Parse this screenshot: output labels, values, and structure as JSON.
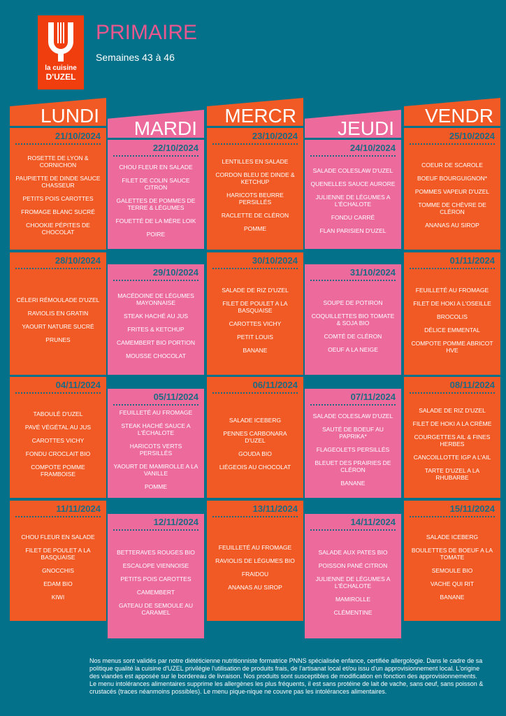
{
  "logo": {
    "line1": "la cuisine",
    "line2": "D'UZEL"
  },
  "title": "PRIMAIRE",
  "subtitle": "Semaines 43 à 46",
  "colors": {
    "background": "#03718a",
    "orange": "#f15a24",
    "pink": "#ec6a9c",
    "title": "#e8578e"
  },
  "days": [
    {
      "name": "LUNDI",
      "color": "orange",
      "weeks": [
        {
          "date": "21/10/2024",
          "items": [
            "ROSETTE DE LYON & CORNICHON",
            "PAUPIETTE DE DINDE SAUCE CHASSEUR",
            "PETITS POIS CAROTTES",
            "FROMAGE BLANC SUCRÉ",
            "CHOOKIE PÉPITES DE CHOCOLAT"
          ]
        },
        {
          "date": "28/10/2024",
          "items": [
            "CÉLERI RÉMOULADE D'UZEL",
            "RAVIOLIS EN GRATIN",
            "YAOURT NATURE SUCRÉ",
            "PRUNES"
          ]
        },
        {
          "date": "04/11/2024",
          "items": [
            "TABOULÉ D'UZEL",
            "PAVÉ VÉGÉTAL AU JUS",
            "CAROTTES VICHY",
            "FONDU CROCLAIT BIO",
            "COMPOTE POMME FRAMBOISE"
          ]
        },
        {
          "date": "11/11/2024",
          "items": [
            "CHOU FLEUR EN SALADE",
            "FILET DE POULET A LA BASQUAISE",
            "GNOCCHIS",
            "EDAM BIO",
            "KIWI"
          ]
        }
      ]
    },
    {
      "name": "MARDI",
      "color": "pink",
      "weeks": [
        {
          "date": "22/10/2024",
          "items": [
            "CHOU FLEUR EN SALADE",
            "FILET DE COLIN SAUCE CITRON",
            "GALETTES DE POMMES DE TERRE & LÉGUMES",
            "FOUETTÉ DE LA MÈRE LOIK",
            "POIRE"
          ]
        },
        {
          "date": "29/10/2024",
          "items": [
            "MACÉDOINE DE LÉGUMES MAYONNAISE",
            "STEAK HACHÉ AU JUS",
            "FRITES & KETCHUP",
            "CAMEMBERT BIO PORTION",
            "MOUSSE CHOCOLAT"
          ]
        },
        {
          "date": "05/11/2024",
          "items": [
            "FEUILLETÉ AU FROMAGE",
            "STEAK HACHÉ SAUCE A L'ÉCHALOTE",
            "HARICOTS VERTS PERSILLÉS",
            "YAOURT DE MAMIROLLE A LA VANILLE",
            "POMME"
          ]
        },
        {
          "date": "12/11/2024",
          "items": [
            "BETTERAVES ROUGES BIO",
            "ESCALOPE VIENNOISE",
            "PETITS POIS CAROTTES",
            "CAMEMBERT",
            "GATEAU DE SEMOULE AU CARAMEL"
          ]
        }
      ]
    },
    {
      "name": "MERCR",
      "color": "orange",
      "weeks": [
        {
          "date": "23/10/2024",
          "items": [
            "LENTILLES EN SALADE",
            "CORDON BLEU DE DINDE & KETCHUP",
            "HARICOTS BEURRE PERSILLÉS",
            "RACLETTE DE CLÉRON",
            "POMME"
          ]
        },
        {
          "date": "30/10/2024",
          "items": [
            "SALADE DE RIZ D'UZEL",
            "FILET DE POULET A LA BASQUAISE",
            "CAROTTES VICHY",
            "PETIT LOUIS",
            "BANANE"
          ]
        },
        {
          "date": "06/11/2024",
          "items": [
            "SALADE ICEBERG",
            "PENNES CARBONARA D'UZEL",
            "GOUDA BIO",
            "LIÉGEOIS AU CHOCOLAT"
          ]
        },
        {
          "date": "13/11/2024",
          "items": [
            "FEUILLETÉ AU FROMAGE",
            "RAVIOLIS DE LÉGUMES BIO",
            "FRAIDOU",
            "ANANAS AU SIROP"
          ]
        }
      ]
    },
    {
      "name": "JEUDI",
      "color": "pink",
      "weeks": [
        {
          "date": "24/10/2024",
          "items": [
            "SALADE COLESLAW D'UZEL",
            "QUENELLES SAUCE AURORE",
            "JULIENNE DE LÉGUMES A L'ÉCHALOTE",
            "FONDU CARRÉ",
            "FLAN PARISIEN D'UZEL"
          ]
        },
        {
          "date": "31/10/2024",
          "items": [
            "SOUPE DE POTIRON",
            "COQUILLETTES BIO TOMATE & SOJA BIO",
            "COMTÉ DE CLÉRON",
            "OEUF A LA NEIGE"
          ]
        },
        {
          "date": "07/11/2024",
          "items": [
            "SALADE COLESLAW D'UZEL",
            "SAUTÉ DE BOEUF AU PAPRIKA*",
            "FLAGEOLETS PERSILLÉS",
            "BLEUET DES PRAIRIES DE CLÉRON",
            "BANANE"
          ]
        },
        {
          "date": "14/11/2024",
          "items": [
            "SALADE AUX PATES BIO",
            "POISSON PANÉ CITRON",
            "JULIENNE DE LÉGUMES A L'ÉCHALOTE",
            "MAMIROLLE",
            "CLÉMENTINE"
          ]
        }
      ]
    },
    {
      "name": "VENDR",
      "color": "orange",
      "weeks": [
        {
          "date": "25/10/2024",
          "items": [
            "COEUR DE SCAROLE",
            "BOEUF BOURGUIGNON*",
            "POMMES VAPEUR D'UZEL",
            "TOMME DE CHÈVRE DE CLÉRON",
            "ANANAS AU SIROP"
          ]
        },
        {
          "date": "01/11/2024",
          "items": [
            "FEUILLETÉ AU FROMAGE",
            "FILET DE HOKI A L'OSEILLE",
            "BROCOLIS",
            "DÉLICE EMMENTAL",
            "COMPOTE POMME ABRICOT HVE"
          ]
        },
        {
          "date": "08/11/2024",
          "items": [
            "SALADE DE RIZ D'UZEL",
            "FILET DE HOKI A LA CRÈME",
            "COURGETTES AIL & FINES HERBES",
            "CANCOILLOTTE IGP A L'AIL",
            "TARTE D'UZEL A LA RHUBARBE"
          ]
        },
        {
          "date": "15/11/2024",
          "items": [
            "SALADE ICEBERG",
            "BOULETTES DE BOEUF A LA TOMATE",
            "SEMOULE BIO",
            "VACHE QUI RIT",
            "BANANE"
          ]
        }
      ]
    }
  ],
  "footer": "Nos menus sont validés par notre diététicienne nutritionniste formatrice PNNS spécialisée enfance, certifiée allergologie. Dans le cadre de sa politique qualité la cuisine d'UZEL privilégie l'utilisation de produits frais, de l'artisanat local et/ou issu d'un approvisionnement local. L'origine des viandes est apposée sur le bordereau de livraison. Nos produits sont susceptibles de modification en fonction des approvisionnements.                         Le menu intolérances alimentaires supprime les allergènes les plus fréquents, il est sans protéine de lait de vache, sans oeuf, sans poisson & crustacés (traces néanmoins possibles). Le menu pique-nique ne couvre pas les intolérances alimentaires."
}
